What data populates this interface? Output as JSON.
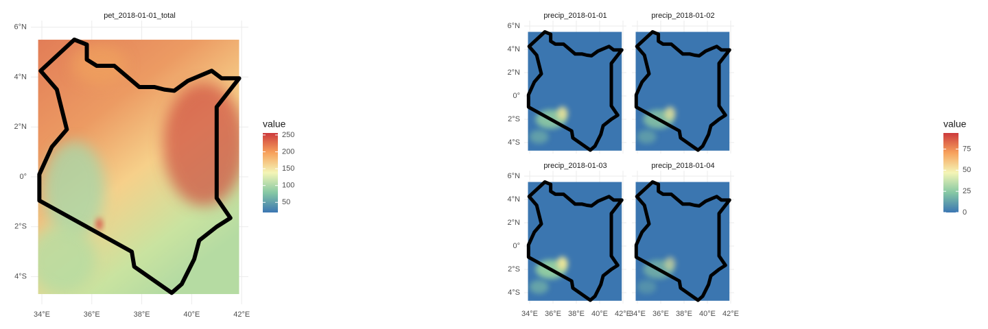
{
  "pet_panel": {
    "title": "pet_2018-01-01_total",
    "x_ticks": [
      {
        "value": 34,
        "label": "34°E"
      },
      {
        "value": 36,
        "label": "36°E"
      },
      {
        "value": 38,
        "label": "38°E"
      },
      {
        "value": 40,
        "label": "40°E"
      },
      {
        "value": 42,
        "label": "42°E"
      }
    ],
    "y_ticks": [
      {
        "value": 6,
        "label": "6°N"
      },
      {
        "value": 4,
        "label": "4°N"
      },
      {
        "value": 2,
        "label": "2°N"
      },
      {
        "value": 0,
        "label": "0°"
      },
      {
        "value": -2,
        "label": "2°S"
      },
      {
        "value": -4,
        "label": "4°S"
      }
    ],
    "legend": {
      "title": "value",
      "ticks": [
        50,
        100,
        150,
        200,
        250
      ],
      "limits": [
        20,
        256
      ]
    }
  },
  "precip_panels": {
    "facets": [
      {
        "title": "precip_2018-01-01"
      },
      {
        "title": "precip_2018-01-02"
      },
      {
        "title": "precip_2018-01-03"
      },
      {
        "title": "precip_2018-01-04"
      }
    ],
    "x_ticks": [
      {
        "value": 34,
        "label": "34°E"
      },
      {
        "value": 36,
        "label": "36°E"
      },
      {
        "value": 38,
        "label": "38°E"
      },
      {
        "value": 40,
        "label": "40°E"
      },
      {
        "value": 42,
        "label": "42°E"
      }
    ],
    "y_ticks": [
      {
        "value": 6,
        "label": "6°N"
      },
      {
        "value": 4,
        "label": "4°N"
      },
      {
        "value": 2,
        "label": "2°N"
      },
      {
        "value": 0,
        "label": "0°"
      },
      {
        "value": -2,
        "label": "2°S"
      },
      {
        "value": -4,
        "label": "4°S"
      }
    ],
    "legend": {
      "title": "value",
      "ticks": [
        0,
        25,
        50,
        75
      ],
      "limits": [
        0,
        94
      ]
    }
  }
}
